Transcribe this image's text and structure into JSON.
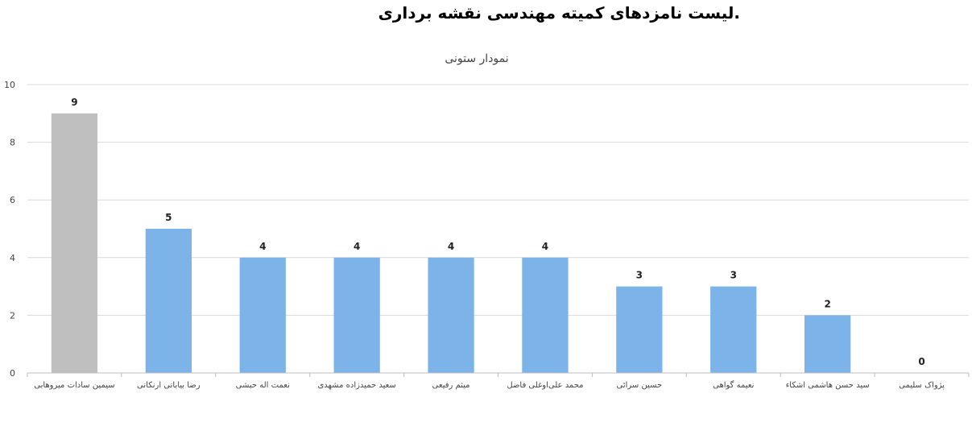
{
  "page": {
    "heading": ".لیست نامزدهای کمیته مهندسی نقشه برداری"
  },
  "chart_data": {
    "type": "bar",
    "title": "نمودار ستونی",
    "xlabel": "",
    "ylabel": "",
    "ylim": [
      0,
      10
    ],
    "yticks": [
      0,
      2,
      4,
      6,
      8,
      10
    ],
    "grid": true,
    "legend": "none",
    "categories": [
      "سیمین سادات میروهابی",
      "رضا بیابانی ارنکانی",
      "نعمت اله حبشی",
      "سعید حمیدزاده مشهدی",
      "میثم رفیعی",
      "محمد علی‌اوغلی فاضل",
      "حسین سرائی",
      "نعیمه گواهی",
      "سید حسن هاشمی اشکاء",
      "پژواک سلیمی"
    ],
    "values": [
      9,
      5,
      4,
      4,
      4,
      4,
      3,
      3,
      2,
      0
    ],
    "colors": {
      "highlight": "#bfbfbf",
      "default": "#7cb4ea"
    },
    "bar_colors": [
      "highlight",
      "default",
      "default",
      "default",
      "default",
      "default",
      "default",
      "default",
      "default",
      "default"
    ]
  }
}
